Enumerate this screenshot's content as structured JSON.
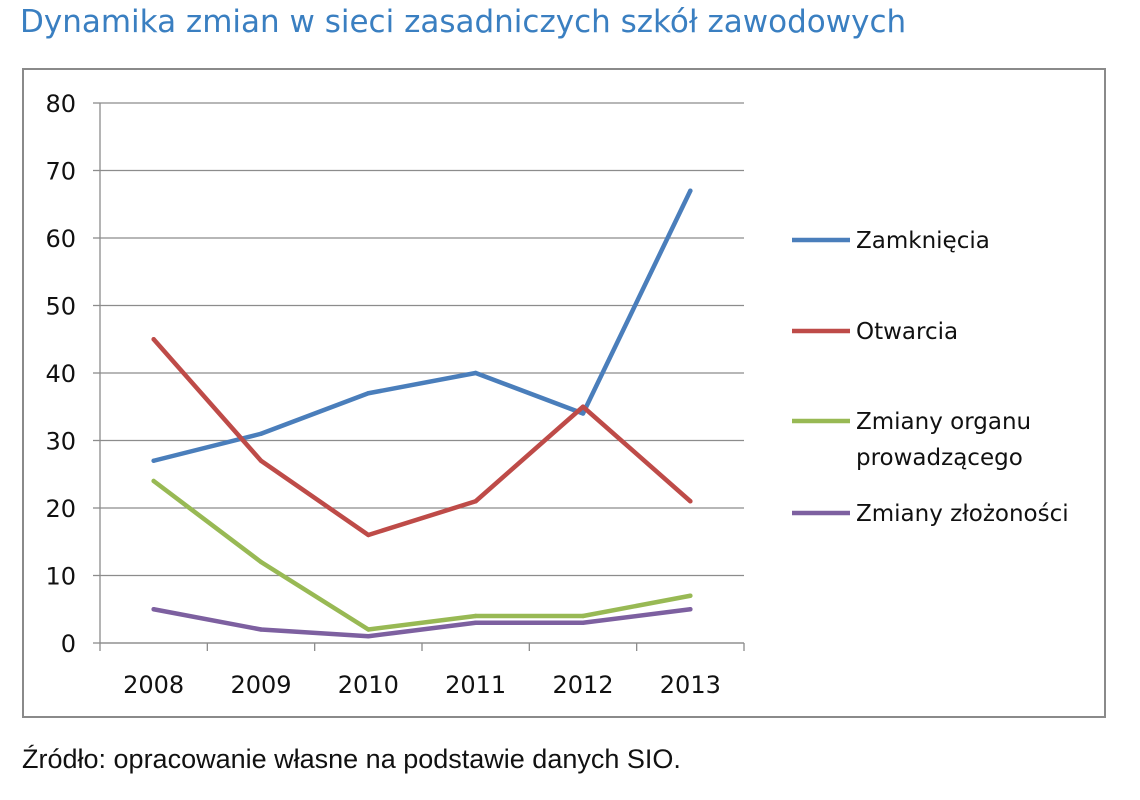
{
  "page_title": "Dynamika zmian w sieci zasadniczych szkół zawodowych",
  "source_note": "Źródło: opracowanie własne na podstawie danych SIO.",
  "chart_data": {
    "type": "line",
    "title": "",
    "xlabel": "",
    "ylabel": "",
    "categories": [
      "2008",
      "2009",
      "2010",
      "2011",
      "2012",
      "2013"
    ],
    "ylim": [
      0,
      80
    ],
    "yticks": [
      0,
      10,
      20,
      30,
      40,
      50,
      60,
      70,
      80
    ],
    "grid": true,
    "legend_position": "right",
    "series": [
      {
        "name": "Zamknięcia",
        "color": "#4a7ebb",
        "values": [
          27,
          31,
          37,
          40,
          34,
          67
        ]
      },
      {
        "name": "Otwarcia",
        "color": "#be4b48",
        "values": [
          45,
          27,
          16,
          21,
          35,
          21
        ]
      },
      {
        "name": "Zmiany organu prowadzącego",
        "color": "#98b954",
        "values": [
          24,
          12,
          2,
          4,
          4,
          7
        ]
      },
      {
        "name": "Zmiany złożoności",
        "color": "#7d60a0",
        "values": [
          5,
          2,
          1,
          3,
          3,
          5
        ]
      }
    ]
  }
}
